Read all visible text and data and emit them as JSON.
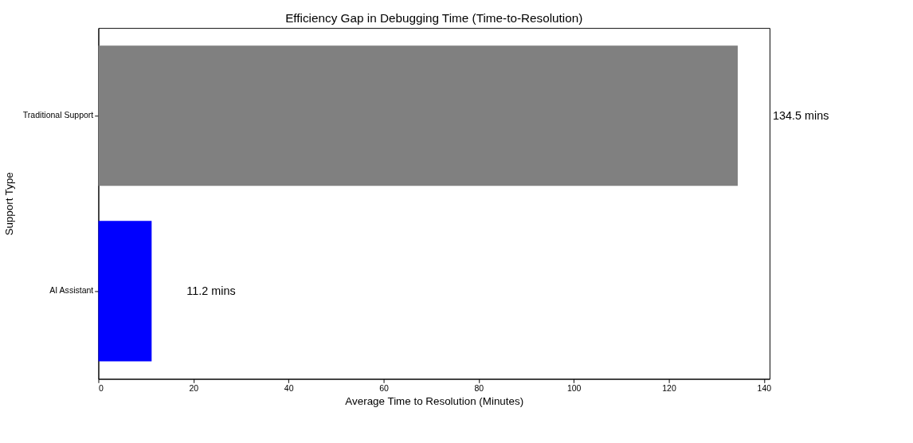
{
  "chart_data": {
    "type": "bar",
    "orientation": "horizontal",
    "title": "Efficiency Gap in Debugging Time (Time-to-Resolution)",
    "xlabel": "Average Time to Resolution (Minutes)",
    "ylabel": "Support Type",
    "categories": [
      "Traditional Support",
      "AI Assistant"
    ],
    "values": [
      134.5,
      11.2
    ],
    "colors": [
      "#808080",
      "#0000ff"
    ],
    "value_labels": [
      "134.5 mins",
      "11.2 mins"
    ],
    "xlim": [
      0,
      141.2
    ],
    "xticks": [
      0,
      20,
      40,
      60,
      80,
      100,
      120,
      140
    ]
  }
}
